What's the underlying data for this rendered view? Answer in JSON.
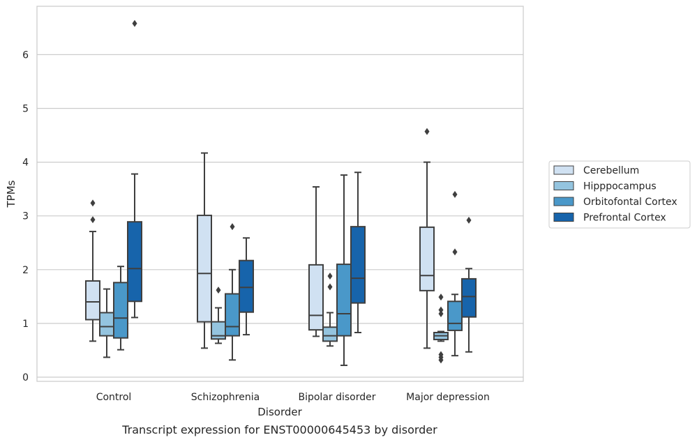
{
  "caption": "Transcript expression for ENST00000645453 by disorder",
  "chart_data": {
    "type": "boxplot",
    "title": "",
    "xlabel": "Disorder",
    "ylabel": "TPMs",
    "ylim": [
      -0.08,
      6.88
    ],
    "yticks": [
      0,
      1,
      2,
      3,
      4,
      5,
      6
    ],
    "categories": [
      "Control",
      "Schizophrenia",
      "Bipolar disorder",
      "Major depression"
    ],
    "grid": "horizontal",
    "legend_position": "right",
    "series": [
      {
        "name": "Cerebellum",
        "color": "#d0e1f2",
        "boxes": [
          {
            "whisker_low": 0.67,
            "q1": 1.07,
            "median": 1.4,
            "q3": 1.79,
            "whisker_high": 2.71,
            "outliers": [
              2.93,
              3.24
            ]
          },
          {
            "whisker_low": 0.54,
            "q1": 1.03,
            "median": 1.93,
            "q3": 3.01,
            "whisker_high": 4.17,
            "outliers": []
          },
          {
            "whisker_low": 0.76,
            "q1": 0.88,
            "median": 1.15,
            "q3": 2.09,
            "whisker_high": 3.54,
            "outliers": []
          },
          {
            "whisker_low": 0.54,
            "q1": 1.61,
            "median": 1.89,
            "q3": 2.79,
            "whisker_high": 4.0,
            "outliers": [
              4.57
            ]
          }
        ]
      },
      {
        "name": "Hipppocampus",
        "color": "#94c4df",
        "boxes": [
          {
            "whisker_low": 0.37,
            "q1": 0.77,
            "median": 0.94,
            "q3": 1.2,
            "whisker_high": 1.64,
            "outliers": []
          },
          {
            "whisker_low": 0.63,
            "q1": 0.71,
            "median": 0.77,
            "q3": 1.03,
            "whisker_high": 1.29,
            "outliers": [
              1.62
            ]
          },
          {
            "whisker_low": 0.58,
            "q1": 0.67,
            "median": 0.77,
            "q3": 0.93,
            "whisker_high": 1.2,
            "outliers": [
              1.68,
              1.88
            ]
          },
          {
            "whisker_low": 0.67,
            "q1": 0.7,
            "median": 0.77,
            "q3": 0.83,
            "whisker_high": 0.85,
            "outliers": [
              0.32,
              0.37,
              0.42,
              1.18,
              1.25,
              1.49
            ]
          }
        ]
      },
      {
        "name": "Orbitofontal Cortex",
        "color": "#4a98c9",
        "boxes": [
          {
            "whisker_low": 0.51,
            "q1": 0.73,
            "median": 1.1,
            "q3": 1.76,
            "whisker_high": 2.06,
            "outliers": []
          },
          {
            "whisker_low": 0.32,
            "q1": 0.77,
            "median": 0.94,
            "q3": 1.55,
            "whisker_high": 2.0,
            "outliers": [
              2.8
            ]
          },
          {
            "whisker_low": 0.22,
            "q1": 0.77,
            "median": 1.18,
            "q3": 2.1,
            "whisker_high": 3.76,
            "outliers": []
          },
          {
            "whisker_low": 0.4,
            "q1": 0.87,
            "median": 1.0,
            "q3": 1.41,
            "whisker_high": 1.54,
            "outliers": [
              2.33,
              3.4
            ]
          }
        ]
      },
      {
        "name": "Prefrontal Cortex",
        "color": "#1764ab",
        "boxes": [
          {
            "whisker_low": 1.11,
            "q1": 1.41,
            "median": 2.02,
            "q3": 2.89,
            "whisker_high": 3.78,
            "outliers": [
              6.58
            ]
          },
          {
            "whisker_low": 0.79,
            "q1": 1.21,
            "median": 1.67,
            "q3": 2.17,
            "whisker_high": 2.59,
            "outliers": []
          },
          {
            "whisker_low": 0.83,
            "q1": 1.38,
            "median": 1.84,
            "q3": 2.8,
            "whisker_high": 3.81,
            "outliers": []
          },
          {
            "whisker_low": 0.47,
            "q1": 1.12,
            "median": 1.5,
            "q3": 1.83,
            "whisker_high": 2.02,
            "outliers": [
              2.92
            ]
          }
        ]
      }
    ]
  }
}
